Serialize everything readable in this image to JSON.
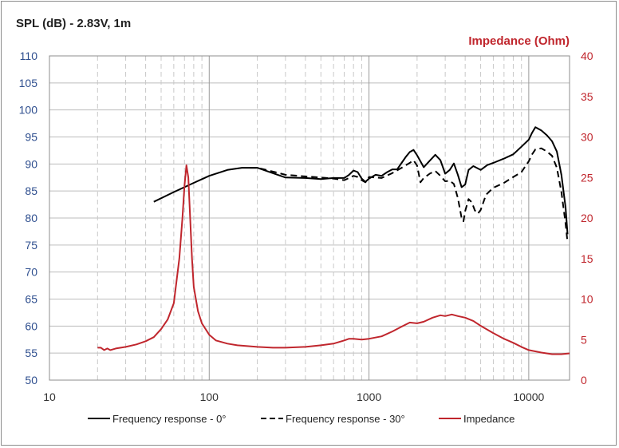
{
  "chart_data": {
    "type": "line",
    "title_left": "SPL (dB) - 2.83V, 1m",
    "title_right": "Impedance (Ohm)",
    "xscale": "log",
    "xlim": [
      10,
      18000
    ],
    "ylim_left": [
      50,
      110
    ],
    "ylim_right": [
      0,
      40
    ],
    "x_ticks": [
      10,
      100,
      1000,
      10000
    ],
    "y_left_ticks": [
      50,
      55,
      60,
      65,
      70,
      75,
      80,
      85,
      90,
      95,
      100,
      105,
      110
    ],
    "y_right_ticks": [
      0,
      5,
      10,
      15,
      20,
      25,
      30,
      35,
      40
    ],
    "grid": "on",
    "legend_position": "bottom",
    "colors": {
      "left_axis": "#2f4f8f",
      "right_axis": "#c0262d",
      "fr0": "#000000",
      "fr30": "#000000",
      "impedance": "#c0262d"
    },
    "series": [
      {
        "name": "Frequency response - 0°",
        "axis": "left",
        "style": "solid",
        "points": [
          [
            45,
            83
          ],
          [
            60,
            84.8
          ],
          [
            80,
            86.5
          ],
          [
            100,
            87.8
          ],
          [
            130,
            88.9
          ],
          [
            160,
            89.3
          ],
          [
            200,
            89.3
          ],
          [
            250,
            88.3
          ],
          [
            300,
            87.5
          ],
          [
            400,
            87.4
          ],
          [
            500,
            87.2
          ],
          [
            600,
            87.4
          ],
          [
            700,
            87.4
          ],
          [
            750,
            88
          ],
          [
            800,
            88.8
          ],
          [
            850,
            88.5
          ],
          [
            900,
            87.3
          ],
          [
            950,
            86.7
          ],
          [
            1000,
            87.3
          ],
          [
            1100,
            88
          ],
          [
            1200,
            87.8
          ],
          [
            1300,
            88.5
          ],
          [
            1400,
            89
          ],
          [
            1500,
            89
          ],
          [
            1600,
            90.2
          ],
          [
            1700,
            91.3
          ],
          [
            1800,
            92.2
          ],
          [
            1900,
            92.6
          ],
          [
            2000,
            91.6
          ],
          [
            2200,
            89.4
          ],
          [
            2400,
            90.6
          ],
          [
            2600,
            91.7
          ],
          [
            2800,
            90.7
          ],
          [
            3000,
            88.2
          ],
          [
            3200,
            88.9
          ],
          [
            3400,
            90.1
          ],
          [
            3600,
            88
          ],
          [
            3800,
            85.7
          ],
          [
            4000,
            86.2
          ],
          [
            4200,
            88.9
          ],
          [
            4500,
            89.6
          ],
          [
            5000,
            88.9
          ],
          [
            5500,
            89.8
          ],
          [
            6000,
            90.2
          ],
          [
            7000,
            91
          ],
          [
            8000,
            91.8
          ],
          [
            9000,
            93.2
          ],
          [
            10000,
            94.5
          ],
          [
            10500,
            95.8
          ],
          [
            11000,
            96.8
          ],
          [
            12000,
            96.2
          ],
          [
            13000,
            95.3
          ],
          [
            14000,
            94.2
          ],
          [
            15000,
            92.3
          ],
          [
            16000,
            88
          ],
          [
            17000,
            82
          ],
          [
            17500,
            77
          ]
        ]
      },
      {
        "name": "Frequency response - 30°",
        "axis": "left",
        "style": "dashed",
        "points": [
          [
            180,
            89.3
          ],
          [
            200,
            89.3
          ],
          [
            250,
            88.6
          ],
          [
            300,
            88
          ],
          [
            400,
            87.7
          ],
          [
            500,
            87.5
          ],
          [
            600,
            87.3
          ],
          [
            700,
            87
          ],
          [
            750,
            87.4
          ],
          [
            800,
            87.8
          ],
          [
            850,
            87.6
          ],
          [
            900,
            87
          ],
          [
            950,
            86.6
          ],
          [
            1000,
            87.6
          ],
          [
            1200,
            87.4
          ],
          [
            1400,
            88.3
          ],
          [
            1600,
            89.3
          ],
          [
            1800,
            90.2
          ],
          [
            1900,
            90.7
          ],
          [
            2000,
            89.7
          ],
          [
            2100,
            86.6
          ],
          [
            2200,
            87.4
          ],
          [
            2400,
            88.2
          ],
          [
            2600,
            88.7
          ],
          [
            2800,
            87.8
          ],
          [
            3000,
            86.8
          ],
          [
            3200,
            86.9
          ],
          [
            3400,
            86.3
          ],
          [
            3600,
            83.7
          ],
          [
            3800,
            80
          ],
          [
            3900,
            79.4
          ],
          [
            4000,
            81.3
          ],
          [
            4200,
            83.5
          ],
          [
            4400,
            82.9
          ],
          [
            4600,
            81.4
          ],
          [
            4800,
            80.8
          ],
          [
            5000,
            81.5
          ],
          [
            5400,
            84.3
          ],
          [
            6000,
            85.6
          ],
          [
            7000,
            86.5
          ],
          [
            8000,
            87.6
          ],
          [
            9000,
            88.5
          ],
          [
            10000,
            90.5
          ],
          [
            10500,
            91.8
          ],
          [
            11000,
            92.7
          ],
          [
            12000,
            92.9
          ],
          [
            13000,
            92.3
          ],
          [
            14000,
            91.5
          ],
          [
            15000,
            89.3
          ],
          [
            16000,
            84.8
          ],
          [
            17000,
            79
          ],
          [
            17500,
            75.5
          ]
        ]
      },
      {
        "name": "Impedance",
        "axis": "right",
        "style": "solid",
        "points": [
          [
            20,
            4
          ],
          [
            21,
            4
          ],
          [
            22,
            3.7
          ],
          [
            23,
            3.9
          ],
          [
            24,
            3.7
          ],
          [
            26,
            3.9
          ],
          [
            30,
            4.1
          ],
          [
            35,
            4.4
          ],
          [
            40,
            4.8
          ],
          [
            45,
            5.3
          ],
          [
            50,
            6.3
          ],
          [
            55,
            7.5
          ],
          [
            60,
            9.5
          ],
          [
            65,
            15
          ],
          [
            68,
            20
          ],
          [
            70,
            24
          ],
          [
            72,
            26.5
          ],
          [
            74,
            25
          ],
          [
            76,
            20
          ],
          [
            78,
            15
          ],
          [
            80,
            11.5
          ],
          [
            85,
            8.5
          ],
          [
            90,
            7
          ],
          [
            100,
            5.6
          ],
          [
            110,
            4.9
          ],
          [
            130,
            4.5
          ],
          [
            150,
            4.3
          ],
          [
            200,
            4.1
          ],
          [
            250,
            4
          ],
          [
            300,
            4
          ],
          [
            400,
            4.1
          ],
          [
            500,
            4.3
          ],
          [
            600,
            4.5
          ],
          [
            700,
            4.9
          ],
          [
            750,
            5.1
          ],
          [
            800,
            5.1
          ],
          [
            900,
            5
          ],
          [
            1000,
            5.1
          ],
          [
            1200,
            5.4
          ],
          [
            1400,
            6
          ],
          [
            1600,
            6.6
          ],
          [
            1800,
            7.1
          ],
          [
            2000,
            7
          ],
          [
            2200,
            7.2
          ],
          [
            2500,
            7.7
          ],
          [
            2800,
            8
          ],
          [
            3000,
            7.9
          ],
          [
            3300,
            8.1
          ],
          [
            3600,
            7.9
          ],
          [
            4000,
            7.7
          ],
          [
            4500,
            7.3
          ],
          [
            5000,
            6.7
          ],
          [
            6000,
            5.8
          ],
          [
            7000,
            5.1
          ],
          [
            8000,
            4.6
          ],
          [
            9000,
            4.1
          ],
          [
            10000,
            3.7
          ],
          [
            12000,
            3.4
          ],
          [
            14000,
            3.2
          ],
          [
            16000,
            3.2
          ],
          [
            18000,
            3.3
          ]
        ]
      }
    ]
  }
}
